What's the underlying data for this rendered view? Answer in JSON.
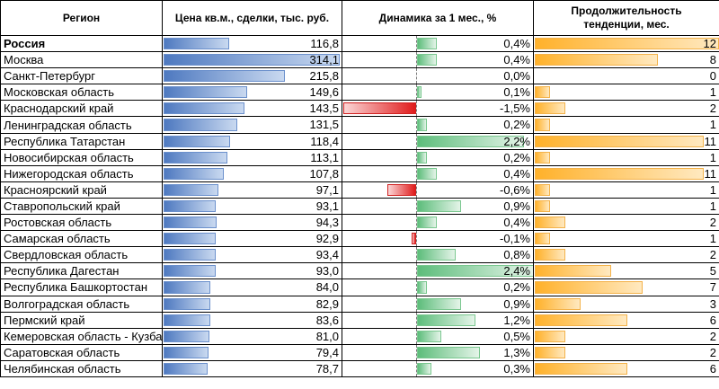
{
  "headers": {
    "region": "Регион",
    "price": "Цена кв.м., сделки, тыс. руб.",
    "dynamics": "Динамика за 1 мес., %",
    "duration_line1": "Продолжительность",
    "duration_line2": "тенденции, мес."
  },
  "scales": {
    "price_max": 314.1,
    "dynamics_min": -1.5,
    "dynamics_max": 2.4,
    "duration_max": 12
  },
  "rows": [
    {
      "region": "Россия",
      "bold": true,
      "price": 116.8,
      "price_label": "116,8",
      "dyn": 0.4,
      "dyn_label": "0,4%",
      "dur": 12,
      "dur_label": "12"
    },
    {
      "region": "Москва",
      "price": 314.1,
      "price_label": "314,1",
      "dyn": 0.4,
      "dyn_label": "0,4%",
      "dur": 8,
      "dur_label": "8"
    },
    {
      "region": "Санкт-Петербург",
      "price": 215.8,
      "price_label": "215,8",
      "dyn": 0.0,
      "dyn_label": "0,0%",
      "dur": 0,
      "dur_label": "0"
    },
    {
      "region": "Московская область",
      "price": 149.6,
      "price_label": "149,6",
      "dyn": 0.1,
      "dyn_label": "0,1%",
      "dur": 1,
      "dur_label": "1"
    },
    {
      "region": "Краснодарский край",
      "price": 143.5,
      "price_label": "143,5",
      "dyn": -1.5,
      "dyn_label": "-1,5%",
      "dur": 2,
      "dur_label": "2"
    },
    {
      "region": "Ленинградская область",
      "price": 131.5,
      "price_label": "131,5",
      "dyn": 0.2,
      "dyn_label": "0,2%",
      "dur": 1,
      "dur_label": "1"
    },
    {
      "region": "Республика Татарстан",
      "price": 118.4,
      "price_label": "118,4",
      "dyn": 2.2,
      "dyn_label": "2,2%",
      "dur": 11,
      "dur_label": "11"
    },
    {
      "region": "Новосибирская область",
      "price": 113.1,
      "price_label": "113,1",
      "dyn": 0.2,
      "dyn_label": "0,2%",
      "dur": 1,
      "dur_label": "1"
    },
    {
      "region": "Нижегородская область",
      "price": 107.8,
      "price_label": "107,8",
      "dyn": 0.4,
      "dyn_label": "0,4%",
      "dur": 11,
      "dur_label": "11"
    },
    {
      "region": "Красноярский край",
      "price": 97.1,
      "price_label": "97,1",
      "dyn": -0.6,
      "dyn_label": "-0,6%",
      "dur": 1,
      "dur_label": "1"
    },
    {
      "region": "Ставропольский край",
      "price": 93.1,
      "price_label": "93,1",
      "dyn": 0.9,
      "dyn_label": "0,9%",
      "dur": 1,
      "dur_label": "1"
    },
    {
      "region": "Ростовская область",
      "price": 94.3,
      "price_label": "94,3",
      "dyn": 0.4,
      "dyn_label": "0,4%",
      "dur": 2,
      "dur_label": "2"
    },
    {
      "region": "Самарская область",
      "price": 92.9,
      "price_label": "92,9",
      "dyn": -0.1,
      "dyn_label": "-0,1%",
      "dur": 1,
      "dur_label": "1"
    },
    {
      "region": "Свердловская область",
      "price": 93.4,
      "price_label": "93,4",
      "dyn": 0.8,
      "dyn_label": "0,8%",
      "dur": 2,
      "dur_label": "2"
    },
    {
      "region": "Республика Дагестан",
      "price": 93.0,
      "price_label": "93,0",
      "dyn": 2.4,
      "dyn_label": "2,4%",
      "dur": 5,
      "dur_label": "5"
    },
    {
      "region": "Республика Башкортостан",
      "price": 84.0,
      "price_label": "84,0",
      "dyn": 0.2,
      "dyn_label": "0,2%",
      "dur": 7,
      "dur_label": "7"
    },
    {
      "region": "Волгоградская область",
      "price": 82.9,
      "price_label": "82,9",
      "dyn": 0.9,
      "dyn_label": "0,9%",
      "dur": 3,
      "dur_label": "3"
    },
    {
      "region": "Пермский край",
      "price": 83.6,
      "price_label": "83,6",
      "dyn": 1.2,
      "dyn_label": "1,2%",
      "dur": 6,
      "dur_label": "6"
    },
    {
      "region": "Кемеровская область - Кузбасс",
      "price": 81.0,
      "price_label": "81,0",
      "dyn": 0.5,
      "dyn_label": "0,5%",
      "dur": 2,
      "dur_label": "2"
    },
    {
      "region": "Саратовская область",
      "price": 79.4,
      "price_label": "79,4",
      "dyn": 1.3,
      "dyn_label": "1,3%",
      "dur": 2,
      "dur_label": "2"
    },
    {
      "region": "Челябинская область",
      "price": 78.7,
      "price_label": "78,7",
      "dyn": 0.3,
      "dyn_label": "0,3%",
      "dur": 6,
      "dur_label": "6"
    }
  ]
}
